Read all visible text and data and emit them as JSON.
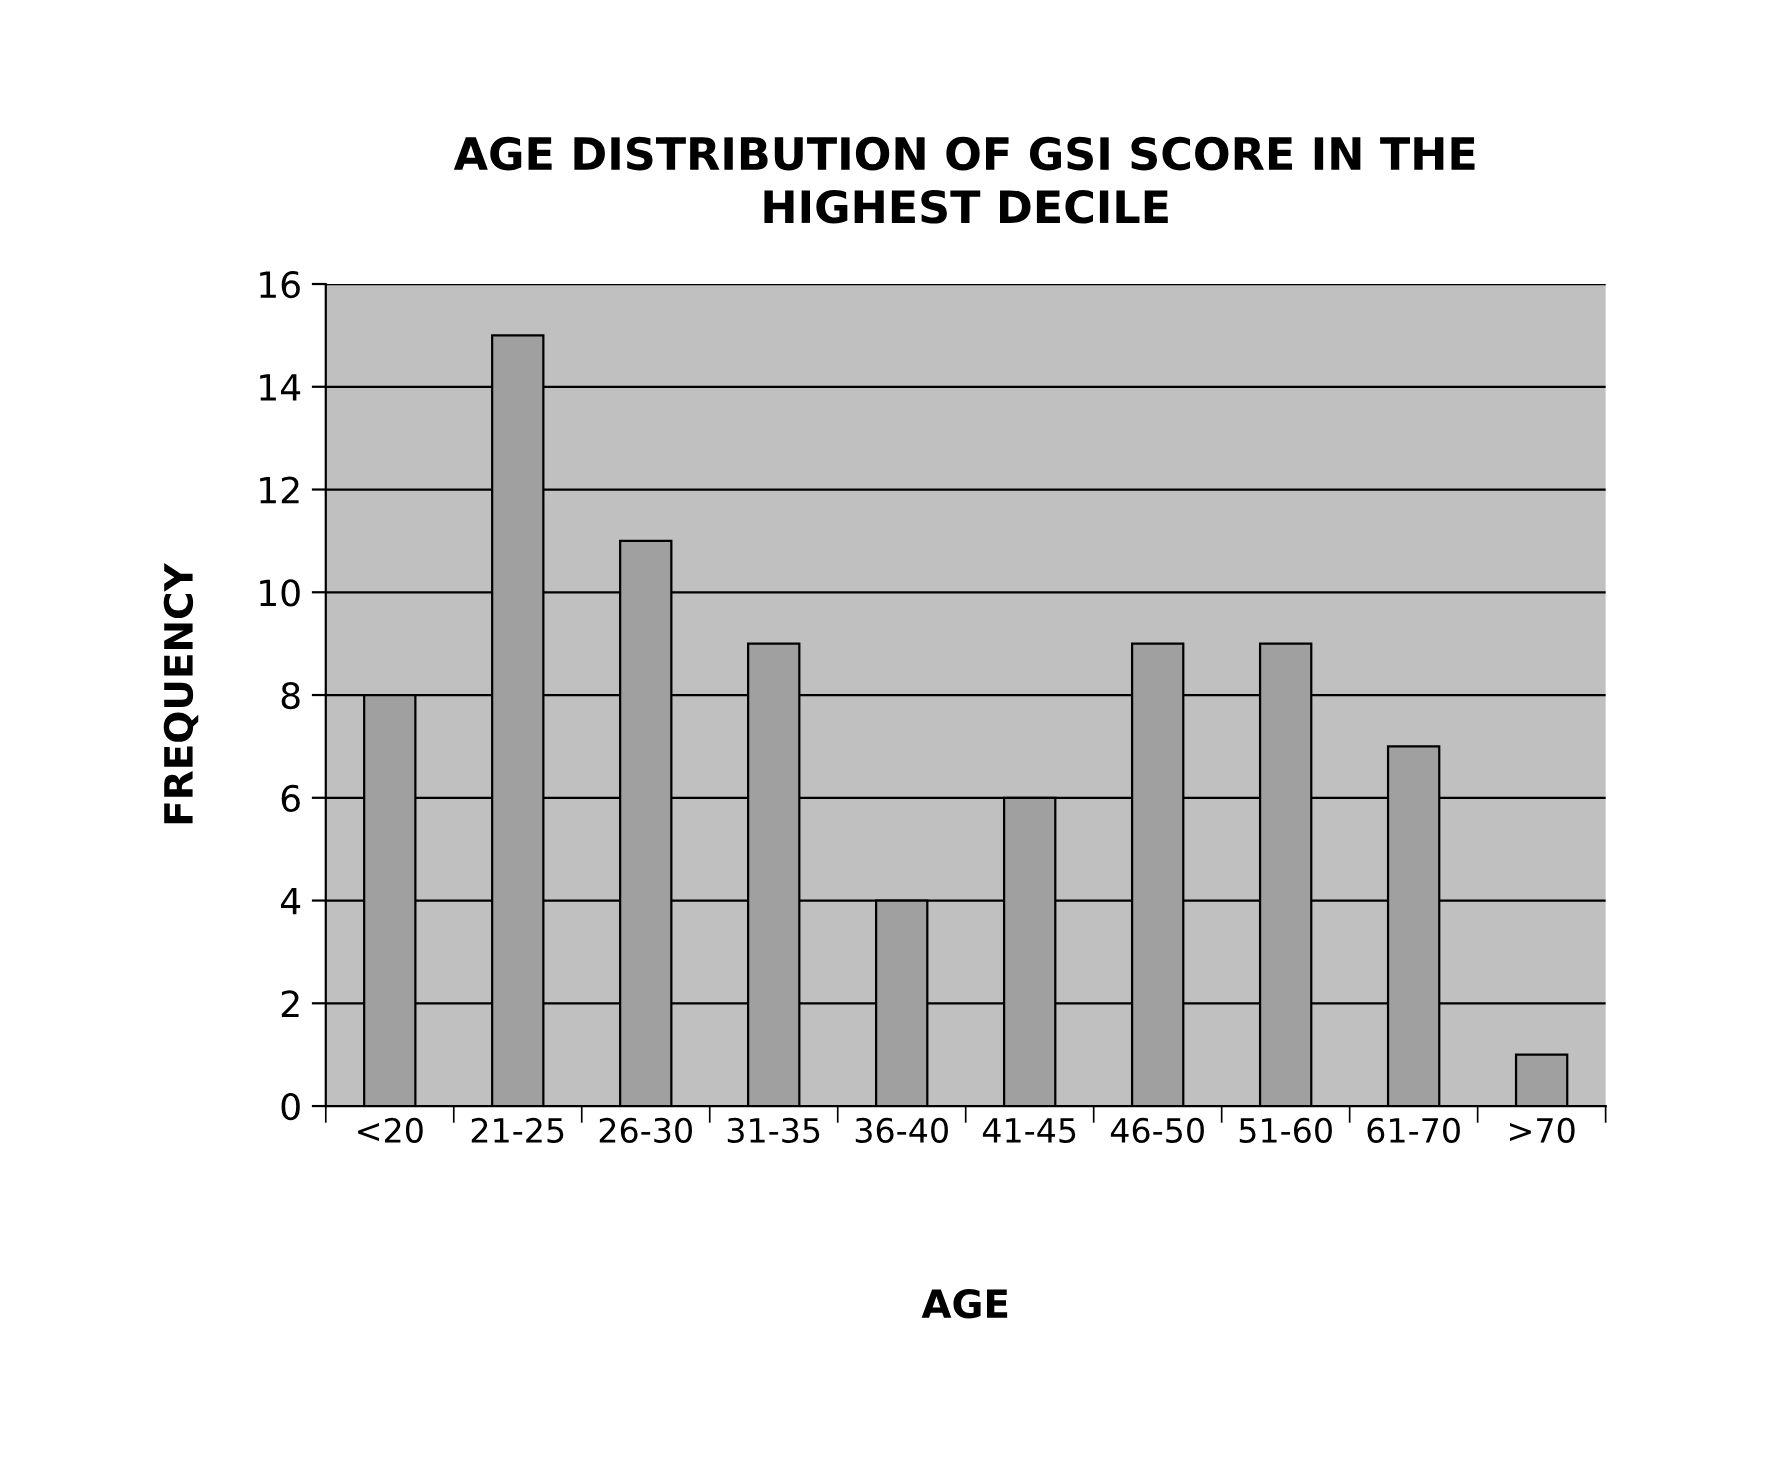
{
  "chart_data": {
    "type": "bar",
    "title": "AGE DISTRIBUTION OF GSI SCORE IN THE\nHIGHEST DECILE",
    "xlabel": "AGE",
    "ylabel": "FREQUENCY",
    "categories": [
      "<20",
      "21-25",
      "26-30",
      "31-35",
      "36-40",
      "41-45",
      "46-50",
      "51-60",
      "61-70",
      ">70"
    ],
    "values": [
      8,
      15,
      11,
      9,
      4,
      6,
      9,
      9,
      7,
      1
    ],
    "color": "#a0a0a0",
    "ylim": [
      0,
      16
    ],
    "yticks": [
      0,
      2,
      4,
      6,
      8,
      10,
      12,
      14,
      16
    ],
    "grid": "y",
    "legend": false
  }
}
